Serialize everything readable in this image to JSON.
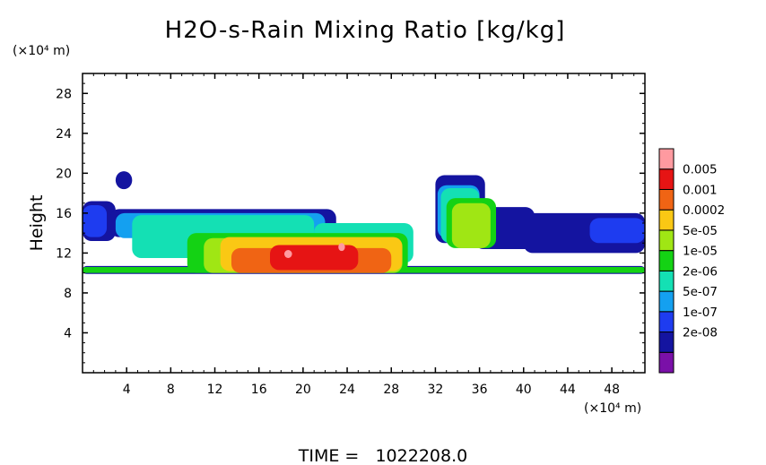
{
  "chart_data": {
    "type": "heatmap",
    "title": "H2O-s-Rain Mixing Ratio [kg/kg]",
    "ylabel": "Height",
    "y_unit": "(×10⁴ m)",
    "x_unit": "(×10⁴ m)",
    "footer": "TIME =   1022208.0",
    "xlim": [
      0,
      51
    ],
    "ylim": [
      0,
      30
    ],
    "x_ticks": [
      4,
      8,
      12,
      16,
      20,
      24,
      28,
      32,
      36,
      40,
      44,
      48
    ],
    "x_tick_labels": [
      "4",
      "8",
      "12",
      "16",
      "20",
      "24",
      "28",
      "32",
      "36",
      "40",
      "44",
      "48"
    ],
    "y_ticks": [
      4,
      8,
      12,
      16,
      20,
      24,
      28
    ],
    "y_tick_labels": [
      "4",
      "8",
      "12",
      "16",
      "20",
      "24",
      "28"
    ],
    "colorbar": {
      "labels": [
        "0.005",
        "0.001",
        "0.0002",
        "5e-05",
        "1e-05",
        "2e-06",
        "5e-07",
        "1e-07",
        "2e-08"
      ],
      "colors": [
        "#7a10a8",
        "#1414a0",
        "#1e3cf0",
        "#14a0f0",
        "#14e0b4",
        "#14d214",
        "#a0e614",
        "#fac814",
        "#f06414",
        "#e61414",
        "#ff9aa0"
      ]
    },
    "regions": [
      {
        "level": 1,
        "x0": 0.0,
        "x1": 3.0,
        "y0": 13.2,
        "y1": 17.2
      },
      {
        "level": 1,
        "x0": 2.5,
        "x1": 23.0,
        "y0": 13.6,
        "y1": 16.4
      },
      {
        "level": 1,
        "x0": 3.0,
        "x1": 4.5,
        "y0": 18.4,
        "y1": 20.2
      },
      {
        "level": 1,
        "x0": 32.0,
        "x1": 36.5,
        "y0": 13.0,
        "y1": 19.8
      },
      {
        "level": 1,
        "x0": 35.5,
        "x1": 41.0,
        "y0": 12.4,
        "y1": 16.6
      },
      {
        "level": 1,
        "x0": 40.0,
        "x1": 51.0,
        "y0": 12.0,
        "y1": 16.0
      },
      {
        "level": 1,
        "x0": 0.0,
        "x1": 51.0,
        "y0": 9.9,
        "y1": 10.7
      },
      {
        "level": 2,
        "x0": 0.0,
        "x1": 2.2,
        "y0": 13.6,
        "y1": 16.8
      },
      {
        "level": 2,
        "x0": 46.0,
        "x1": 51.0,
        "y0": 13.0,
        "y1": 15.5
      },
      {
        "level": 3,
        "x0": 3.0,
        "x1": 22.0,
        "y0": 13.5,
        "y1": 16.0
      },
      {
        "level": 3,
        "x0": 32.2,
        "x1": 36.0,
        "y0": 13.5,
        "y1": 18.8
      },
      {
        "level": 4,
        "x0": 4.5,
        "x1": 21.0,
        "y0": 11.5,
        "y1": 15.8
      },
      {
        "level": 4,
        "x0": 21.0,
        "x1": 30.0,
        "y0": 11.0,
        "y1": 15.0
      },
      {
        "level": 4,
        "x0": 32.5,
        "x1": 36.0,
        "y0": 13.0,
        "y1": 18.5
      },
      {
        "level": 5,
        "x0": 9.5,
        "x1": 29.5,
        "y0": 10.0,
        "y1": 14.0
      },
      {
        "level": 5,
        "x0": 33.0,
        "x1": 37.5,
        "y0": 12.5,
        "y1": 17.5
      },
      {
        "level": 5,
        "x0": 0.0,
        "x1": 51.0,
        "y0": 10.0,
        "y1": 10.6
      },
      {
        "level": 6,
        "x0": 11.0,
        "x1": 29.0,
        "y0": 10.0,
        "y1": 13.5
      },
      {
        "level": 6,
        "x0": 33.5,
        "x1": 37.0,
        "y0": 12.5,
        "y1": 17.0
      },
      {
        "level": 7,
        "x0": 12.5,
        "x1": 29.0,
        "y0": 10.2,
        "y1": 13.6
      },
      {
        "level": 8,
        "x0": 13.5,
        "x1": 28.0,
        "y0": 10.0,
        "y1": 12.5
      },
      {
        "level": 9,
        "x0": 17.0,
        "x1": 25.0,
        "y0": 10.3,
        "y1": 12.8
      },
      {
        "level": 10,
        "x0": 18.3,
        "x1": 19.0,
        "y0": 11.5,
        "y1": 12.3
      },
      {
        "level": 10,
        "x0": 23.2,
        "x1": 23.8,
        "y0": 12.2,
        "y1": 13.0
      }
    ]
  }
}
